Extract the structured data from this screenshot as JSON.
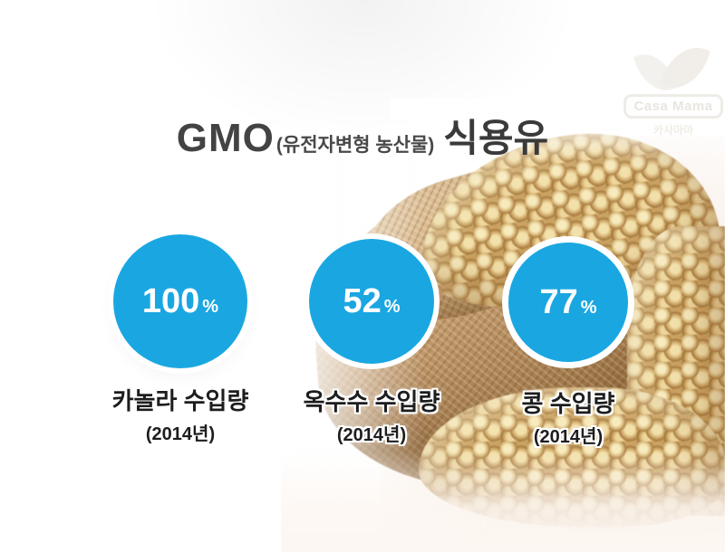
{
  "colors": {
    "accent_blue": "#1aa7e1",
    "text_dark": "#3a3a3a",
    "background": "#ffffff"
  },
  "header": {
    "title_prefix": "GMO",
    "title_paren": "(유전자변형 농산물)",
    "title_suffix": "식용유"
  },
  "watermark": {
    "brand": "Casa Mama",
    "brand_korean": "카사마마",
    "icon": "leaf-icon"
  },
  "stats": [
    {
      "value": "100",
      "unit": "%",
      "label": "카놀라 수입량",
      "year": "(2014년)"
    },
    {
      "value": "52",
      "unit": "%",
      "label": "옥수수 수입량",
      "year": "(2014년)"
    },
    {
      "value": "77",
      "unit": "%",
      "label": "콩 수입량",
      "year": "(2014년)"
    }
  ],
  "photo": {
    "subject": "soybeans-in-burlap-sack-photo"
  },
  "chart_data": {
    "type": "bar",
    "variant": "percentage-circle-infographic",
    "title": "GMO(유전자변형 농산물) 식용유",
    "categories": [
      "카놀라 수입량",
      "옥수수 수입량",
      "콩 수입량"
    ],
    "values": [
      100,
      52,
      77
    ],
    "unit": "%",
    "period": "2014년",
    "ylim": [
      0,
      100
    ],
    "legend": false,
    "grid": false
  }
}
